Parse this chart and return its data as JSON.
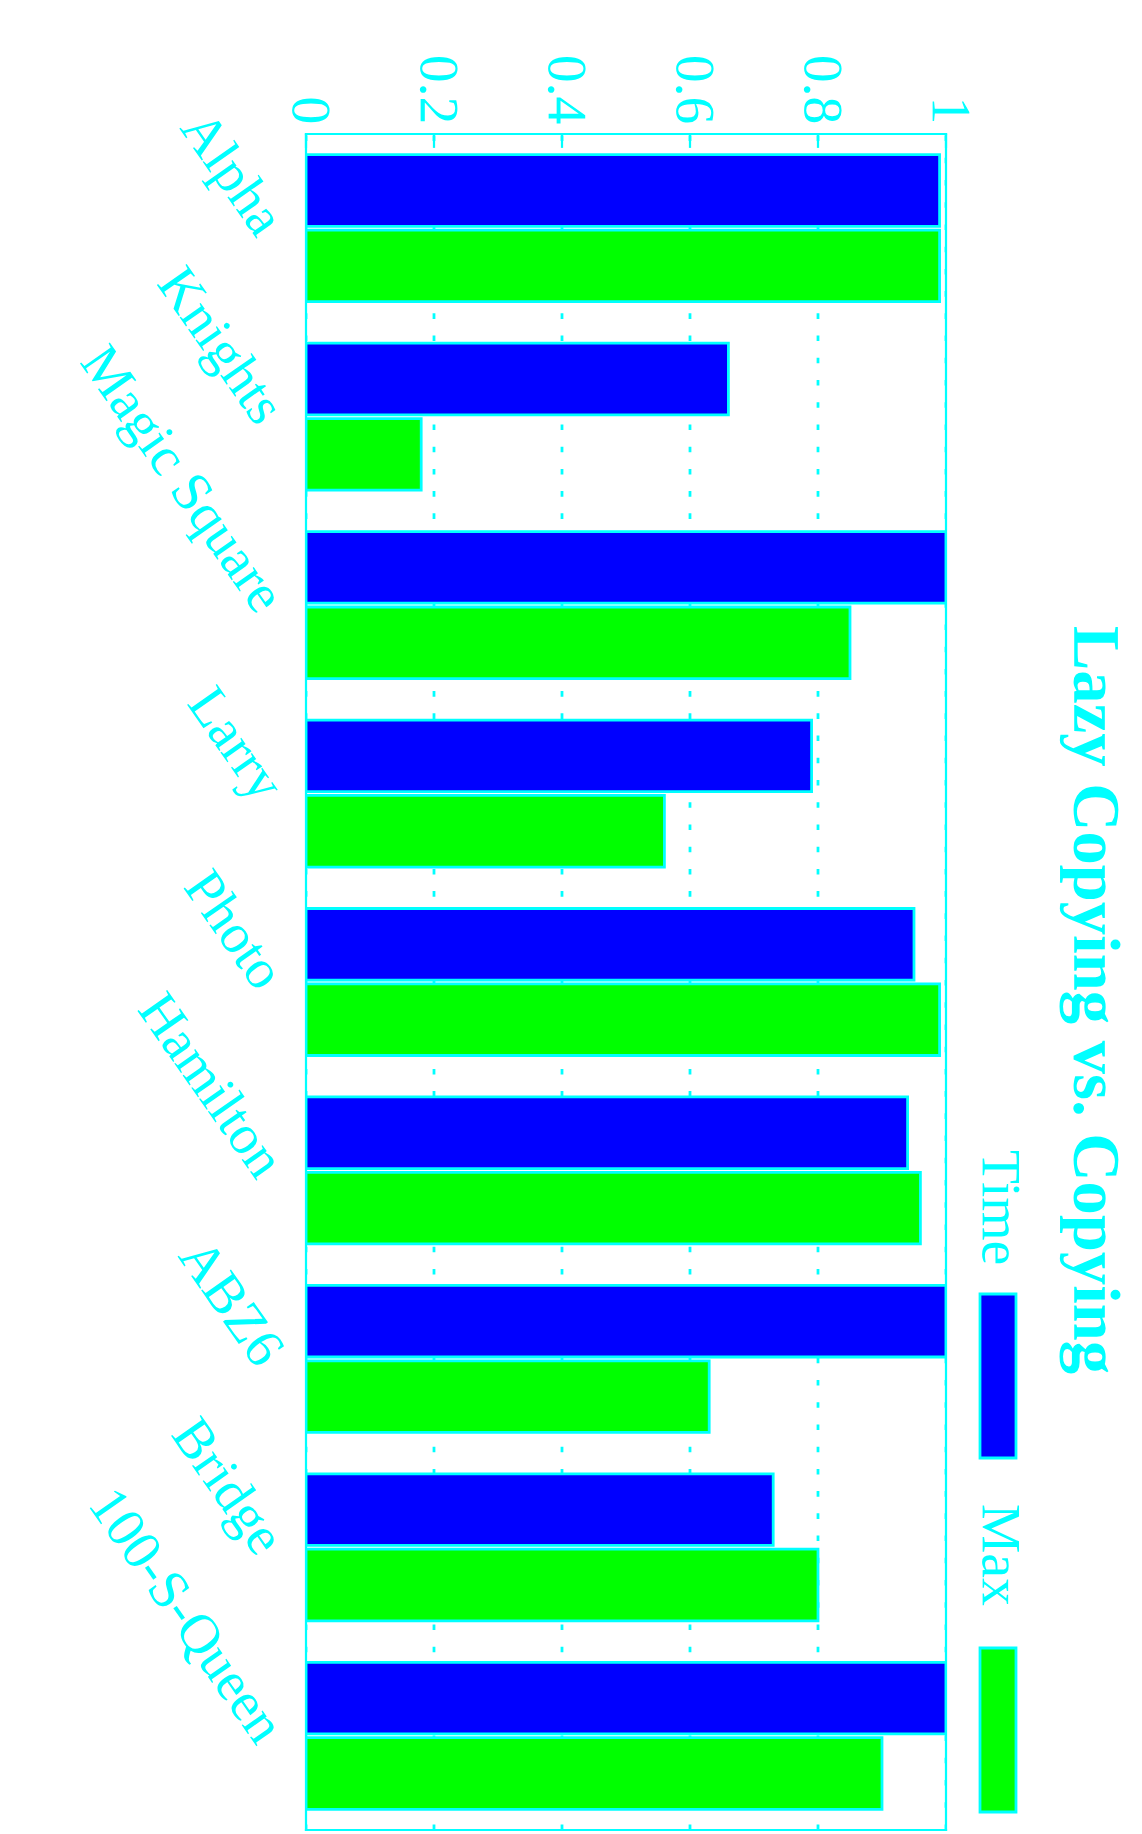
{
  "chart_data": {
    "type": "bar",
    "orientation": "horizontal",
    "title": "Lazy Copying vs. Copying",
    "categories": [
      "Alpha",
      "Knights",
      "Magic Square",
      "Larry",
      "Photo",
      "Hamilton",
      "ABZ6",
      "Bridge",
      "100-S-Queen"
    ],
    "series": [
      {
        "name": "Time",
        "color": "#0000ff",
        "values": [
          0.99,
          0.66,
          1.0,
          0.79,
          0.95,
          0.94,
          1.0,
          0.73,
          1.0
        ]
      },
      {
        "name": "Max",
        "color": "#00ff00",
        "values": [
          0.99,
          0.18,
          0.85,
          0.56,
          0.99,
          0.96,
          0.63,
          0.8,
          0.9
        ]
      }
    ],
    "xlim": [
      0,
      1
    ],
    "xticks": [
      0,
      0.2,
      0.4,
      0.6,
      0.8,
      1
    ],
    "grid": "x",
    "legend": "right"
  }
}
